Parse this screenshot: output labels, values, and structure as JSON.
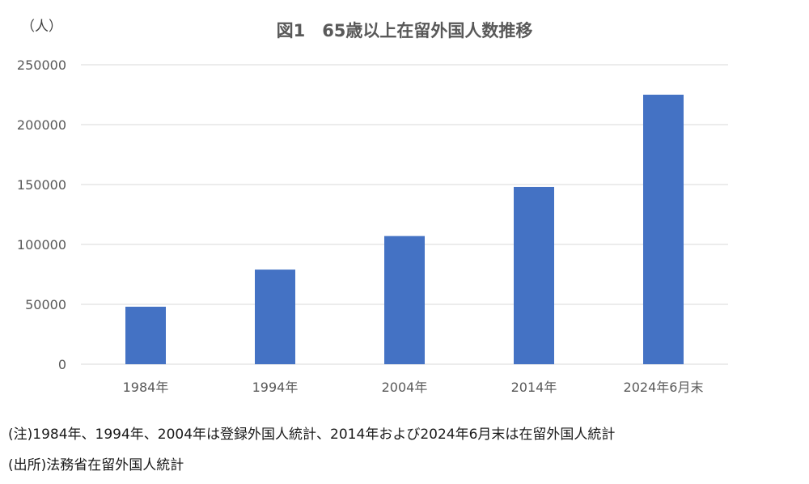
{
  "chart_data": {
    "type": "bar",
    "title": "図1　65歳以上在留外国人数推移",
    "y_unit_label": "（人）",
    "xlabel": "",
    "ylabel": "",
    "categories": [
      "1984年",
      "1994年",
      "2004年",
      "2014年",
      "2024年6月末"
    ],
    "series": [
      {
        "values": [
          48000,
          79000,
          107000,
          148000,
          225000
        ]
      }
    ],
    "ylim": [
      0,
      250000
    ],
    "y_ticks": [
      "0",
      "50000",
      "100000",
      "150000",
      "200000",
      "250000"
    ],
    "grid": true,
    "legend": "none",
    "bar_color": "#4472c4",
    "grid_color": "#d9d9d9"
  },
  "notes": {
    "note1": "(注)1984年、1994年、2004年は登録外国人統計、2014年および2024年6月末は在留外国人統計",
    "source": "(出所)法務省在留外国人統計"
  }
}
